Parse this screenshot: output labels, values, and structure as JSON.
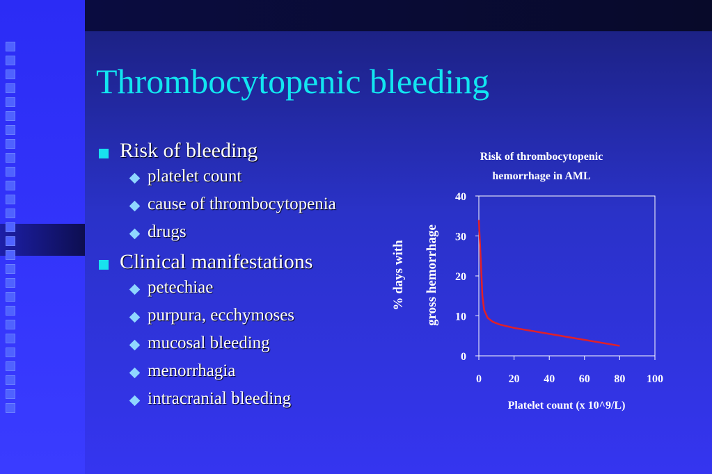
{
  "slide": {
    "title": "Thrombocytopenic bleeding",
    "bullets": [
      {
        "label": "Risk of bleeding",
        "subs": [
          "platelet count",
          "cause of thrombocytopenia",
          "drugs"
        ]
      },
      {
        "label": "Clinical manifestations",
        "subs": [
          "petechiae",
          "purpura, ecchymoses",
          "mucosal bleeding",
          "menorrhagia",
          "intracranial bleeding"
        ]
      }
    ]
  },
  "colors": {
    "title": "#12e6f0",
    "bullet": "#18e2ee",
    "curve": "#e0202a"
  },
  "chart_data": {
    "type": "line",
    "title": "Risk of thrombocytopenic hemorrhage in AML",
    "title_lines": [
      "Risk of thrombocytopenic",
      "hemorrhage in AML"
    ],
    "xlabel": "Platelet count (x 10^9/L)",
    "ylabel_lines": [
      "% days with",
      "gross hemorrhage"
    ],
    "xlim": [
      0,
      100
    ],
    "ylim": [
      0,
      40
    ],
    "xticks": [
      0,
      20,
      40,
      60,
      80,
      100
    ],
    "yticks": [
      0,
      10,
      20,
      30,
      40
    ],
    "grid": false,
    "series": [
      {
        "x": [
          0,
          1,
          2,
          3,
          5,
          8,
          12,
          20,
          40,
          60,
          80
        ],
        "y": [
          34,
          25,
          15,
          11.5,
          9.5,
          8.5,
          7.8,
          7,
          5.5,
          4,
          2.5
        ]
      }
    ]
  }
}
